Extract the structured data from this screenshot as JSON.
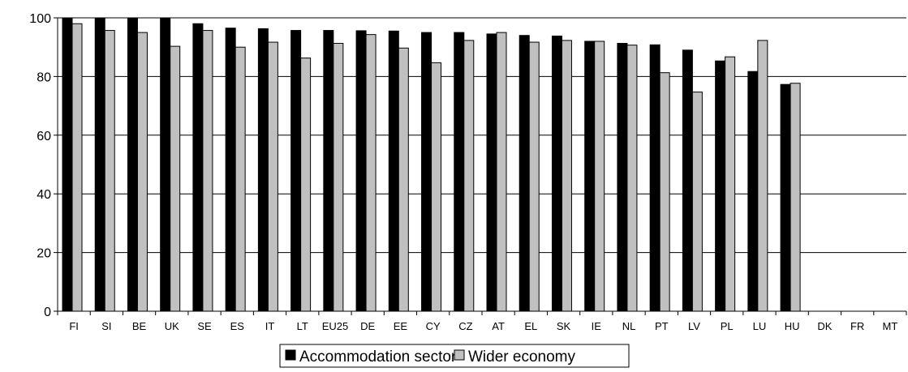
{
  "chart_data": {
    "type": "bar",
    "categories": [
      "FI",
      "SI",
      "BE",
      "UK",
      "SE",
      "ES",
      "IT",
      "LT",
      "EU25",
      "DE",
      "EE",
      "CY",
      "CZ",
      "AT",
      "EL",
      "SK",
      "IE",
      "NL",
      "PT",
      "LV",
      "PL",
      "LU",
      "HU",
      "DK",
      "FR",
      "MT"
    ],
    "series": [
      {
        "name": "Accommodation sector",
        "color": "#000000",
        "values": [
          100,
          100,
          100,
          100,
          98,
          96.5,
          96.3,
          95.7,
          95.7,
          95.6,
          95.5,
          95,
          95,
          94.5,
          94,
          93.8,
          92,
          91.3,
          90.8,
          89,
          85.3,
          81.7,
          77.3,
          null,
          null,
          null
        ]
      },
      {
        "name": "Wider economy",
        "color": "#c0c0c0",
        "values": [
          98,
          95.7,
          95,
          90.3,
          95.7,
          90,
          91.7,
          86.3,
          91.3,
          94.3,
          89.7,
          84.7,
          92.3,
          95,
          91.7,
          92.3,
          92,
          90.7,
          81.3,
          74.7,
          86.7,
          92.3,
          77.7,
          null,
          null,
          null
        ]
      }
    ],
    "ylim": [
      0,
      100
    ],
    "yticks": [
      0,
      20,
      40,
      60,
      80,
      100
    ],
    "grid": "horizontal",
    "legend": "bottom-center"
  }
}
